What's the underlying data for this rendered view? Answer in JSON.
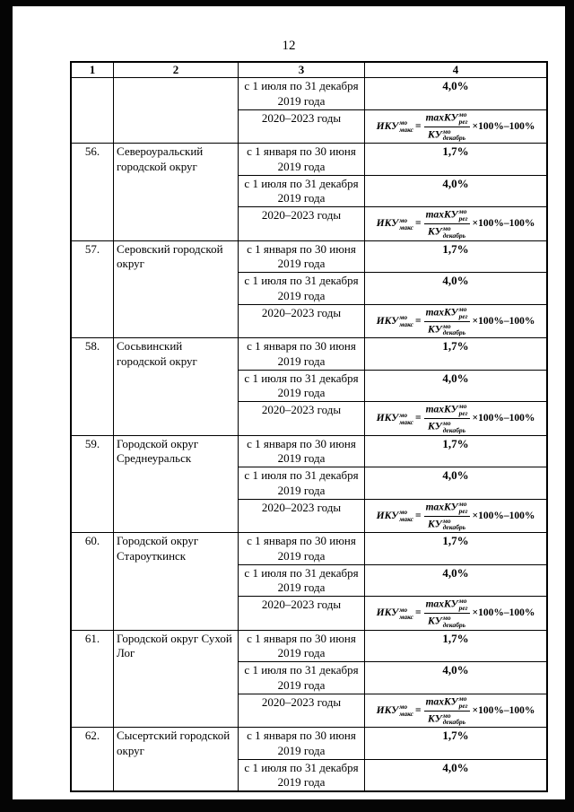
{
  "page": {
    "number": "12"
  },
  "table": {
    "headers": [
      "1",
      "2",
      "3",
      "4"
    ],
    "formula": {
      "lhs": "ИКУ",
      "lhs_sup": "мо",
      "lhs_sub": "макс",
      "eq": "=",
      "num": "maxКУ",
      "num_sup": "мо",
      "num_sub": "рег",
      "den": "КУ",
      "den_sup": "мо",
      "den_sub": "декабрь",
      "tail": "×100%–100%"
    },
    "groups": [
      {
        "num": "",
        "name": "",
        "periods": [
          {
            "period": "с 1 июля по 31 декабря 2019 года",
            "value": "4,0%"
          },
          {
            "period": "2020–2023 годы",
            "formula": true
          }
        ]
      },
      {
        "num": "56.",
        "name": "Североуральский городской округ",
        "periods": [
          {
            "period": "с 1 января по 30 июня 2019 года",
            "value": "1,7%"
          },
          {
            "period": "с 1 июля по 31 декабря 2019 года",
            "value": "4,0%"
          },
          {
            "period": "2020–2023 годы",
            "formula": true
          }
        ]
      },
      {
        "num": "57.",
        "name": "Серовский городской округ",
        "periods": [
          {
            "period": "с 1 января по 30 июня 2019 года",
            "value": "1,7%"
          },
          {
            "period": "с 1 июля по 31 декабря 2019 года",
            "value": "4,0%"
          },
          {
            "period": "2020–2023 годы",
            "formula": true
          }
        ]
      },
      {
        "num": "58.",
        "name": "Сосьвинский городской округ",
        "periods": [
          {
            "period": "с 1 января по 30 июня 2019 года",
            "value": "1,7%"
          },
          {
            "period": "с 1 июля по 31 декабря 2019 года",
            "value": "4,0%"
          },
          {
            "period": "2020–2023 годы",
            "formula": true
          }
        ]
      },
      {
        "num": "59.",
        "name": "Городской округ Среднеуральск",
        "periods": [
          {
            "period": "с 1 января по 30 июня 2019 года",
            "value": "1,7%"
          },
          {
            "period": "с 1 июля по 31 декабря 2019 года",
            "value": "4,0%"
          },
          {
            "period": "2020–2023 годы",
            "formula": true
          }
        ]
      },
      {
        "num": "60.",
        "name": "Городской округ Староуткинск",
        "periods": [
          {
            "period": "с 1 января по 30 июня 2019 года",
            "value": "1,7%"
          },
          {
            "period": "с 1 июля по 31 декабря 2019 года",
            "value": "4,0%"
          },
          {
            "period": "2020–2023 годы",
            "formula": true
          }
        ]
      },
      {
        "num": "61.",
        "name": "Городской округ Сухой Лог",
        "periods": [
          {
            "period": "с 1 января по 30 июня 2019 года",
            "value": "1,7%"
          },
          {
            "period": "с 1 июля по 31 декабря 2019 года",
            "value": "4,0%"
          },
          {
            "period": "2020–2023 годы",
            "formula": true
          }
        ]
      },
      {
        "num": "62.",
        "name": "Сысертский городской округ",
        "periods": [
          {
            "period": "с 1 января по 30 июня 2019 года",
            "value": "1,7%"
          },
          {
            "period": "с 1 июля по 31 декабря 2019 года",
            "value": "4,0%"
          }
        ]
      }
    ]
  }
}
